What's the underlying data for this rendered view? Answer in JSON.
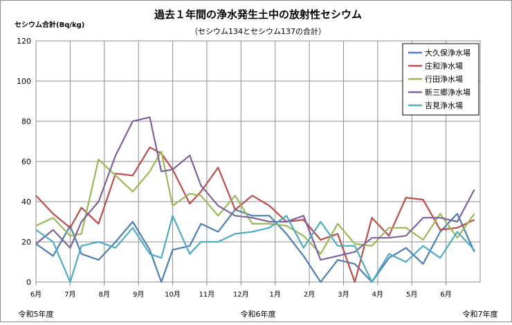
{
  "chart_data": {
    "type": "line",
    "title": "過去１年間の浄水発生土中の放射性セシウム",
    "subtitle": "（セシウム134とセシウム137の合計）",
    "ylabel": "セシウム合計(Bq/kg)",
    "ylim": [
      0,
      120
    ],
    "yticks": [
      0,
      20,
      40,
      60,
      80,
      100,
      120
    ],
    "xlim": [
      0,
      13
    ],
    "month_ticks": [
      "6月",
      "7月",
      "8月",
      "9月",
      "10月",
      "11月",
      "12月",
      "1月",
      "2月",
      "3月",
      "4月",
      "5月",
      "6月"
    ],
    "era_labels": [
      "令和5年度",
      "令和6年度",
      "令和7年度"
    ],
    "grid": true,
    "legend_position": "top-right",
    "series": [
      {
        "name": "大久保浄水場",
        "color": "#4a7ebb",
        "x": [
          0,
          0.5,
          1,
          1.33,
          1.83,
          2.33,
          2.83,
          3.33,
          3.67,
          4,
          4.5,
          4.83,
          5.33,
          5.83,
          6.33,
          6.83,
          7.33,
          7.83,
          8.33,
          8.83,
          9.33,
          9.83,
          10.33,
          10.83,
          11.33,
          11.83,
          12.33,
          12.83
        ],
        "y": [
          19,
          13,
          28,
          14,
          11,
          20,
          30,
          16,
          0,
          16,
          18,
          29,
          25,
          36,
          33,
          33,
          24,
          13,
          0,
          11,
          9,
          0,
          12,
          17,
          9,
          25,
          34,
          15
        ]
      },
      {
        "name": "庄和浄水場",
        "color": "#be4b48",
        "x": [
          0,
          0.5,
          1,
          1.33,
          1.83,
          2.33,
          2.83,
          3.33,
          3.67,
          4,
          4.5,
          4.83,
          5.33,
          5.83,
          6.33,
          6.83,
          7.33,
          7.83,
          8.33,
          8.83,
          9.33,
          9.83,
          10.33,
          10.83,
          11.33,
          11.83,
          12.33,
          12.83
        ],
        "y": [
          43,
          34,
          27,
          37,
          29,
          54,
          53,
          67,
          64,
          56,
          39,
          45,
          57,
          36,
          43,
          38,
          30,
          31,
          21,
          24,
          0,
          32,
          23,
          42,
          41,
          26,
          27,
          31
        ]
      },
      {
        "name": "行田浄水場",
        "color": "#98b954",
        "x": [
          0,
          0.5,
          1,
          1.33,
          1.83,
          2.33,
          2.83,
          3.33,
          3.67,
          4,
          4.5,
          4.83,
          5.33,
          5.83,
          6.33,
          6.83,
          7.33,
          7.83,
          8.33,
          8.83,
          9.33,
          9.83,
          10.33,
          10.83,
          11.33,
          11.83,
          12.33,
          12.83
        ],
        "y": [
          28,
          32,
          23,
          24,
          61,
          53,
          45,
          55,
          65,
          38,
          44,
          43,
          33,
          43,
          29,
          29,
          28,
          23,
          14,
          29,
          19,
          18,
          27,
          27,
          21,
          34,
          22,
          34
        ]
      },
      {
        "name": "新三郷浄水場",
        "color": "#7d60a0",
        "x": [
          0,
          0.5,
          1,
          1.33,
          1.83,
          2.33,
          2.83,
          3.33,
          3.67,
          4,
          4.5,
          4.83,
          5.33,
          5.83,
          6.33,
          6.83,
          7.33,
          7.83,
          8.33,
          8.83,
          9.33,
          9.83,
          10.33,
          10.83,
          11.33,
          11.83,
          12.33,
          12.83
        ],
        "y": [
          19,
          26,
          17,
          30,
          40,
          63,
          80,
          82,
          55,
          56,
          63,
          48,
          38,
          33,
          32,
          30,
          30,
          33,
          11,
          13,
          15,
          22,
          22,
          23,
          32,
          32,
          30,
          46
        ]
      },
      {
        "name": "吉見浄水場",
        "color": "#4bacc6",
        "x": [
          0,
          0.5,
          1,
          1.33,
          1.83,
          2.33,
          2.83,
          3.33,
          3.67,
          4,
          4.5,
          4.83,
          5.33,
          5.83,
          6.33,
          6.83,
          7.33,
          7.83,
          8.33,
          8.83,
          9.33,
          9.83,
          10.33,
          10.83,
          11.33,
          11.83,
          12.33,
          12.83
        ],
        "y": [
          26,
          20,
          0,
          18,
          20,
          17,
          27,
          14,
          12,
          33,
          14,
          20,
          20,
          24,
          25,
          27,
          33,
          17,
          30,
          18,
          18,
          0,
          14,
          10,
          18,
          12,
          25,
          16
        ]
      }
    ]
  }
}
